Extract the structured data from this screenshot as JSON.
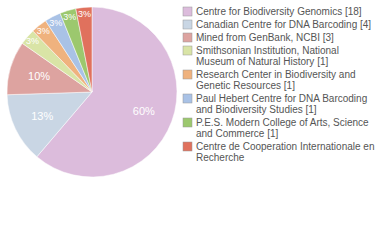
{
  "chart_data": {
    "type": "pie",
    "categories": [
      "Centre for Biodiversity Genomics [18]",
      "Canadian Centre for DNA Barcoding [4]",
      "Mined from GenBank, NCBI [3]",
      "Smithsonian Institution, National Museum of Natural History [1]",
      "Research Center in Biodiversity and Genetic Resources [1]",
      "Paul Hebert Centre for DNA Barcoding and Biodiversity Studies [1]",
      "P.E.S. Modern College of Arts, Science and Commerce [1]",
      "Centre de Cooperation Internationale en Recherche"
    ],
    "values": [
      60,
      13,
      10,
      3,
      3,
      3,
      3,
      3
    ],
    "value_labels": [
      "60%",
      "13%",
      "10%",
      "3%",
      "3%",
      "3%",
      "3%",
      "3%"
    ],
    "colors": [
      "#dcbcdc",
      "#c9d6e4",
      "#dda3a0",
      "#d9e4a6",
      "#efb27e",
      "#a9c2e6",
      "#9cc86e",
      "#e0715d"
    ],
    "data_labels": true,
    "legend": "right"
  }
}
